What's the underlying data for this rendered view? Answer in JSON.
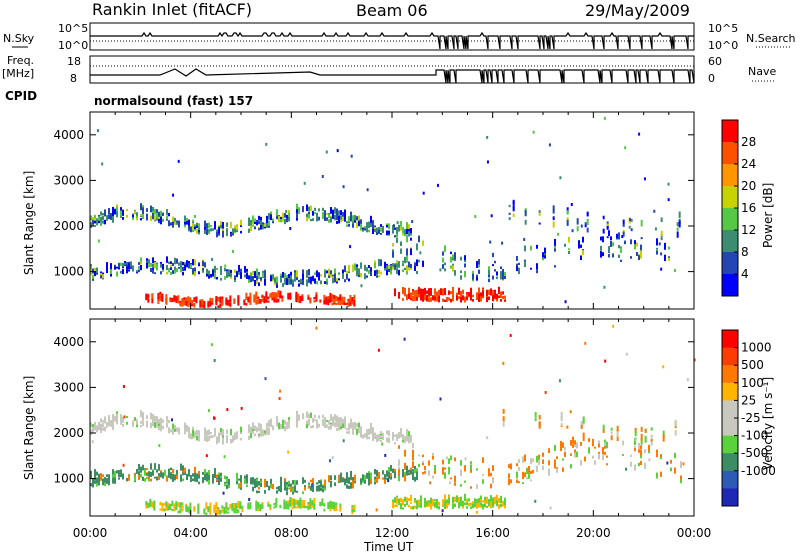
{
  "header": {
    "station": "Rankin Inlet (fitACF)",
    "beam": "Beam 06",
    "date": "29/May/2009"
  },
  "labels": {
    "nsky": "N.Sky",
    "nsearch": "N.Search",
    "freq_line1": "Freq.",
    "freq_line2": "[MHz]",
    "nave": "Nave",
    "cpid": "CPID",
    "cpid_value": "normalsound (fast) 157",
    "time_axis": "Time UT",
    "range_axis": "Slant Range [km]"
  },
  "colors": {
    "power": [
      "#0000ff",
      "#2346b4",
      "#3c8c73",
      "#55c846",
      "#c8d200",
      "#ff9600",
      "#ff5000",
      "#ff0000"
    ],
    "velocity": [
      "#1e28b4",
      "#2d5ab4",
      "#3c8c64",
      "#5ad23c",
      "#c8c8be",
      "#c8c8be",
      "#ffb400",
      "#ff7800",
      "#ff3c00",
      "#ff0000"
    ]
  },
  "chart_data": [
    {
      "type": "line",
      "name": "nsky-nsearch",
      "ylabels_left": [
        "10^5",
        "10^0"
      ],
      "ylabels_right": [
        "10^5",
        "10^0"
      ],
      "xlim": [
        0,
        24
      ]
    },
    {
      "type": "line",
      "name": "freq-nave",
      "ylabels_left": [
        "18",
        "8"
      ],
      "ylabels_right": [
        "60",
        "0"
      ],
      "xlim": [
        0,
        24
      ]
    },
    {
      "type": "heatmap",
      "name": "power",
      "colorbar_label": "Power [dB]",
      "colorbar_ticks": [
        "28",
        "24",
        "20",
        "16",
        "12",
        "8",
        "4"
      ],
      "yticks": [
        1000,
        2000,
        3000,
        4000
      ],
      "ylim": [
        180,
        4500
      ],
      "xlim": [
        0,
        24
      ],
      "xticks": [
        "00:00",
        "04:00",
        "08:00",
        "12:00",
        "16:00",
        "20:00",
        "00:00"
      ]
    },
    {
      "type": "heatmap",
      "name": "velocity",
      "colorbar_label": "Velocity [m s⁻¹]",
      "colorbar_ticks": [
        "1000",
        "500",
        "100",
        "25",
        "-25",
        "-100",
        "-500",
        "-1000"
      ],
      "yticks": [
        1000,
        2000,
        3000,
        4000
      ],
      "ylim": [
        180,
        4500
      ],
      "xlim": [
        0,
        24
      ],
      "xticks": [
        "00:00",
        "04:00",
        "08:00",
        "12:00",
        "16:00",
        "20:00",
        "00:00"
      ]
    }
  ]
}
